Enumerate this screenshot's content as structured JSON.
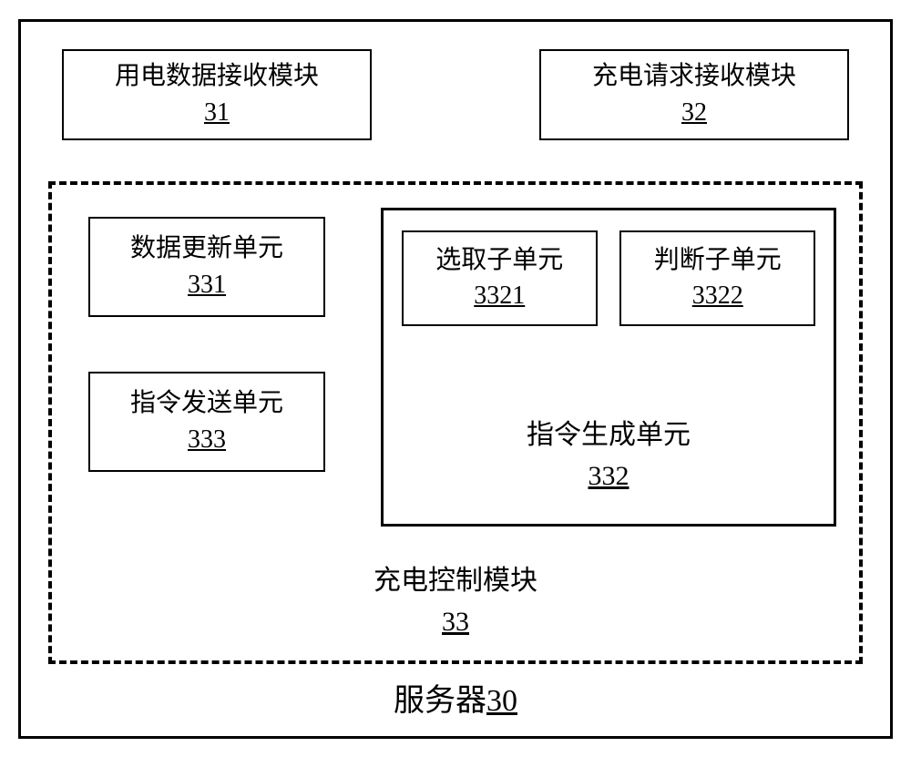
{
  "diagram": {
    "type": "block-diagram",
    "background_color": "#ffffff",
    "border_color": "#000000",
    "font_family": "SimSun",
    "outer_border_width": 3,
    "dashed_border_width": 4,
    "solid_inner_border_width": 2,
    "title_fontsize": 34,
    "module_fontsize": 28,
    "unit_fontsize": 28,
    "subunit_fontsize": 28,
    "gen_label_fontsize": 30,
    "dashed_label_fontsize": 30
  },
  "server": {
    "label": "服务器",
    "num": "30"
  },
  "top_modules": {
    "data_recv": {
      "label": "用电数据接收模块",
      "num": "31"
    },
    "req_recv": {
      "label": "充电请求接收模块",
      "num": "32"
    }
  },
  "control_module": {
    "label": "充电控制模块",
    "num": "33",
    "units": {
      "data_update": {
        "label": "数据更新单元",
        "num": "331"
      },
      "cmd_send": {
        "label": "指令发送单元",
        "num": "333"
      },
      "cmd_gen": {
        "label": "指令生成单元",
        "num": "332",
        "subunits": {
          "select": {
            "label": "选取子单元",
            "num": "3321"
          },
          "judge": {
            "label": "判断子单元",
            "num": "3322"
          }
        }
      }
    }
  }
}
